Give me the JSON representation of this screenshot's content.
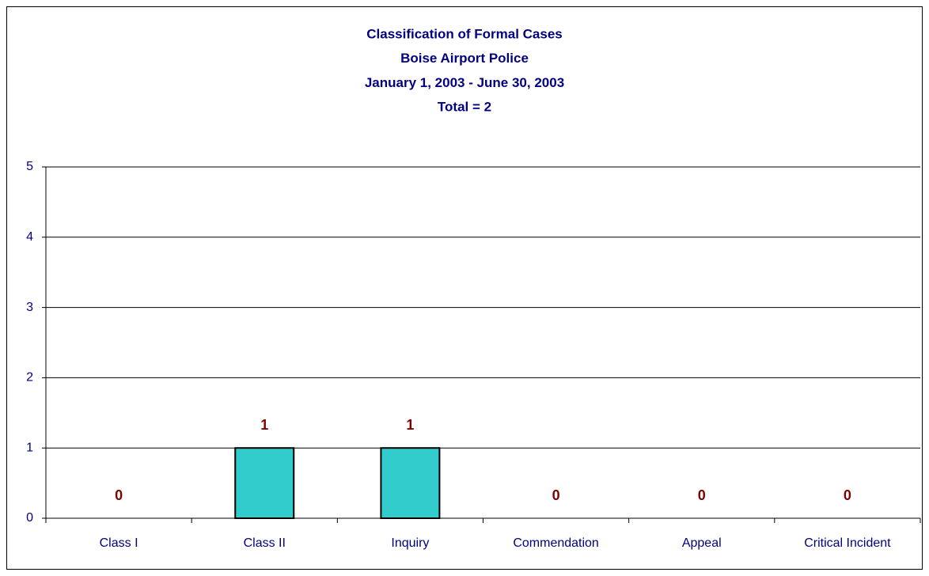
{
  "chart_data": {
    "type": "bar",
    "title": [
      "Classification of Formal Cases",
      "Boise Airport Police",
      "January 1, 2003 - June 30, 2003",
      "Total = 2"
    ],
    "categories": [
      "Class I",
      "Class II",
      "Inquiry",
      "Commendation",
      "Appeal",
      "Critical Incident"
    ],
    "values": [
      0,
      1,
      1,
      0,
      0,
      0
    ],
    "color": "#33cccc",
    "ylim": [
      0,
      5
    ],
    "yticks": [
      0,
      1,
      2,
      3,
      4,
      5
    ],
    "grid": true
  }
}
